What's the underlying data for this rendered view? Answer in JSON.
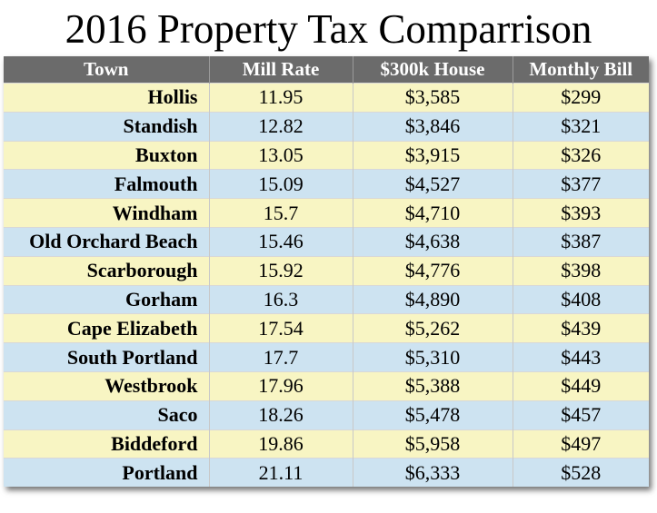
{
  "chart_data": {
    "type": "table",
    "title": "2016 Property Tax Comparrison",
    "columns": [
      "Town",
      "Mill Rate",
      "$300k House",
      "Monthly Bill"
    ],
    "rows": [
      [
        "Hollis",
        "11.95",
        "$3,585",
        "$299"
      ],
      [
        "Standish",
        "12.82",
        "$3,846",
        "$321"
      ],
      [
        "Buxton",
        "13.05",
        "$3,915",
        "$326"
      ],
      [
        "Falmouth",
        "15.09",
        "$4,527",
        "$377"
      ],
      [
        "Windham",
        "15.7",
        "$4,710",
        "$393"
      ],
      [
        "Old Orchard Beach",
        "15.46",
        "$4,638",
        "$387"
      ],
      [
        "Scarborough",
        "15.92",
        "$4,776",
        "$398"
      ],
      [
        "Gorham",
        "16.3",
        "$4,890",
        "$408"
      ],
      [
        "Cape Elizabeth",
        "17.54",
        "$5,262",
        "$439"
      ],
      [
        "South Portland",
        "17.7",
        "$5,310",
        "$443"
      ],
      [
        "Westbrook",
        "17.96",
        "$5,388",
        "$449"
      ],
      [
        "Saco",
        "18.26",
        "$5,478",
        "$457"
      ],
      [
        "Biddeford",
        "19.86",
        "$5,958",
        "$497"
      ],
      [
        "Portland",
        "21.11",
        "$6,333",
        "$528"
      ]
    ]
  },
  "colors": {
    "header_bg": "#6b6b6b",
    "row_yellow": "#f8f5c3",
    "row_blue": "#cde3f1"
  }
}
